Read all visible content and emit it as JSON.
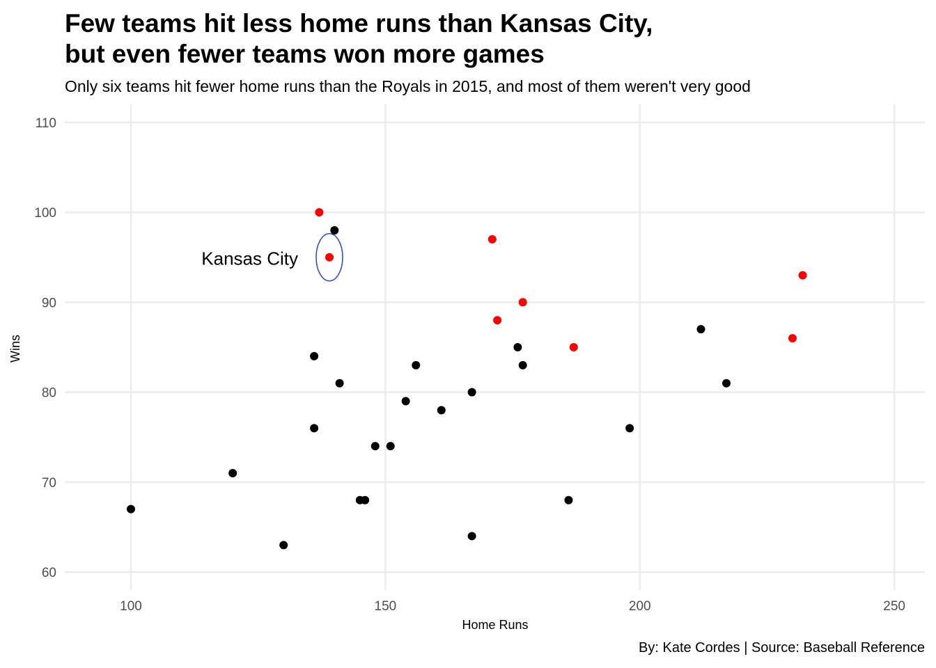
{
  "chart_data": {
    "type": "scatter",
    "title_line1": "Few teams hit less home runs than Kansas City,",
    "title_line2": "but even fewer teams won more games",
    "subtitle": "Only six teams hit fewer home runs than the Royals in 2015, and most of them weren't very good",
    "caption": "By: Kate Cordes | Source: Baseball Reference",
    "xlabel": "Home Runs",
    "ylabel": "Wins",
    "xlim": [
      87,
      256
    ],
    "ylim": [
      58,
      112
    ],
    "x_ticks": [
      100,
      150,
      200,
      250
    ],
    "y_ticks": [
      60,
      70,
      80,
      90,
      100,
      110
    ],
    "grid": true,
    "highlight_color": "#ff0000",
    "default_color": "#000000",
    "annotation": {
      "text": "Kansas City",
      "x": 139,
      "y": 95,
      "ring_color": "#3050c8"
    },
    "points": [
      {
        "x": 137,
        "y": 100,
        "highlight": true
      },
      {
        "x": 139,
        "y": 95,
        "highlight": true
      },
      {
        "x": 171,
        "y": 97,
        "highlight": true
      },
      {
        "x": 177,
        "y": 90,
        "highlight": true
      },
      {
        "x": 172,
        "y": 88,
        "highlight": true
      },
      {
        "x": 187,
        "y": 85,
        "highlight": true
      },
      {
        "x": 232,
        "y": 93,
        "highlight": true
      },
      {
        "x": 230,
        "y": 86,
        "highlight": true
      },
      {
        "x": 140,
        "y": 98,
        "highlight": false
      },
      {
        "x": 136,
        "y": 84,
        "highlight": false
      },
      {
        "x": 141,
        "y": 81,
        "highlight": false
      },
      {
        "x": 136,
        "y": 76,
        "highlight": false
      },
      {
        "x": 120,
        "y": 71,
        "highlight": false
      },
      {
        "x": 100,
        "y": 67,
        "highlight": false
      },
      {
        "x": 130,
        "y": 63,
        "highlight": false
      },
      {
        "x": 145,
        "y": 68,
        "highlight": false
      },
      {
        "x": 146,
        "y": 68,
        "highlight": false
      },
      {
        "x": 148,
        "y": 74,
        "highlight": false
      },
      {
        "x": 151,
        "y": 74,
        "highlight": false
      },
      {
        "x": 154,
        "y": 79,
        "highlight": false
      },
      {
        "x": 156,
        "y": 83,
        "highlight": false
      },
      {
        "x": 161,
        "y": 78,
        "highlight": false
      },
      {
        "x": 167,
        "y": 80,
        "highlight": false
      },
      {
        "x": 167,
        "y": 64,
        "highlight": false
      },
      {
        "x": 176,
        "y": 85,
        "highlight": false
      },
      {
        "x": 177,
        "y": 83,
        "highlight": false
      },
      {
        "x": 186,
        "y": 68,
        "highlight": false
      },
      {
        "x": 198,
        "y": 76,
        "highlight": false
      },
      {
        "x": 212,
        "y": 87,
        "highlight": false
      },
      {
        "x": 217,
        "y": 81,
        "highlight": false
      }
    ]
  }
}
